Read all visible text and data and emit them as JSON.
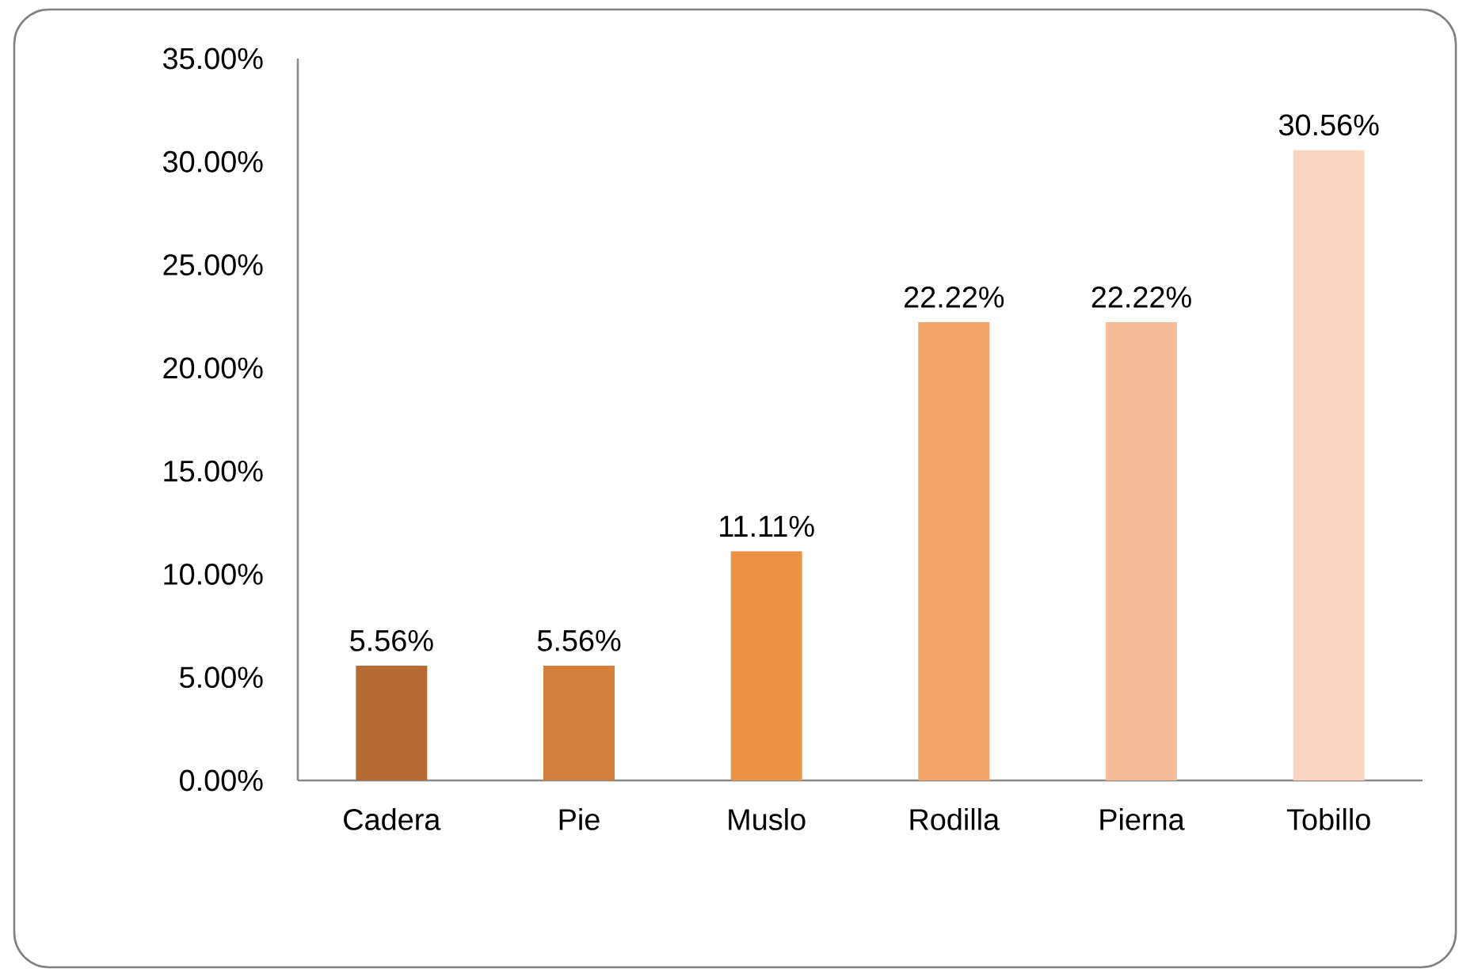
{
  "chart_data": {
    "type": "bar",
    "categories": [
      "Cadera",
      "Pie",
      "Muslo",
      "Rodilla",
      "Pierna",
      "Tobillo"
    ],
    "values": [
      5.56,
      5.56,
      11.11,
      22.22,
      22.22,
      30.56
    ],
    "colors": [
      "#b46a32",
      "#d57f3c",
      "#ec9245",
      "#f5a66d",
      "#f7bc9a",
      "#f9d4c1"
    ],
    "value_labels": [
      "5.56%",
      "5.56%",
      "11.11%",
      "22.22%",
      "22.22%",
      "30.56%"
    ],
    "ylim": [
      0,
      35
    ],
    "yticks": [
      {
        "value": 0,
        "label": "0.00%"
      },
      {
        "value": 5,
        "label": "5.00%"
      },
      {
        "value": 10,
        "label": "10.00%"
      },
      {
        "value": 15,
        "label": "15.00%"
      },
      {
        "value": 20,
        "label": "20.00%"
      },
      {
        "value": 25,
        "label": "25.00%"
      },
      {
        "value": 30,
        "label": "30.00%"
      },
      {
        "value": 35,
        "label": "35.00%"
      }
    ]
  }
}
